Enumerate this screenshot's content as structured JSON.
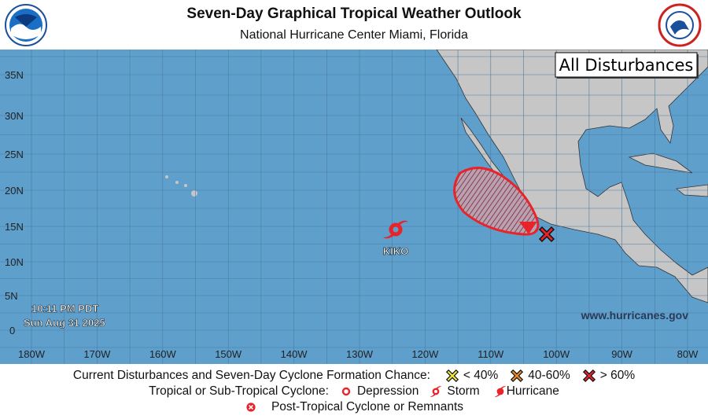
{
  "header": {
    "title": "Seven-Day Graphical Tropical Weather Outlook",
    "subtitle": "National Hurricane Center  Miami, Florida",
    "left_logo": "NOAA",
    "right_logo": "National Weather Service"
  },
  "map": {
    "mode_label": "All Disturbances",
    "website": "www.hurricanes.gov",
    "time": "10:11 PM PDT",
    "date": "Sun Aug 31 2025",
    "lat_labels": [
      "35N",
      "30N",
      "25N",
      "20N",
      "15N",
      "10N",
      "5N",
      "0"
    ],
    "lon_labels": [
      "180W",
      "170W",
      "160W",
      "150W",
      "140W",
      "130W",
      "120W",
      "110W",
      "100W",
      "90W",
      "80W"
    ],
    "ocean_color": "#5f9fcc",
    "land_color": "#c6c6c6",
    "storms": [
      {
        "name": "KIKO",
        "type": "hurricane",
        "color": "#e8242b"
      }
    ],
    "disturbances": [
      {
        "chance": "> 60%",
        "color": "#e8242b"
      }
    ]
  },
  "legend": {
    "row1_label": "Current Disturbances and Seven-Day Cyclone Formation Chance:",
    "low": "< 40%",
    "mid": "40-60%",
    "high": "> 60%",
    "low_color": "#f5e93a",
    "mid_color": "#f08a24",
    "high_color": "#e8242b",
    "row2_label": "Tropical or Sub-Tropical Cyclone:",
    "depression": "Depression",
    "storm": "Storm",
    "hurricane": "Hurricane",
    "row3_label": "Post-Tropical Cyclone or Remnants"
  }
}
